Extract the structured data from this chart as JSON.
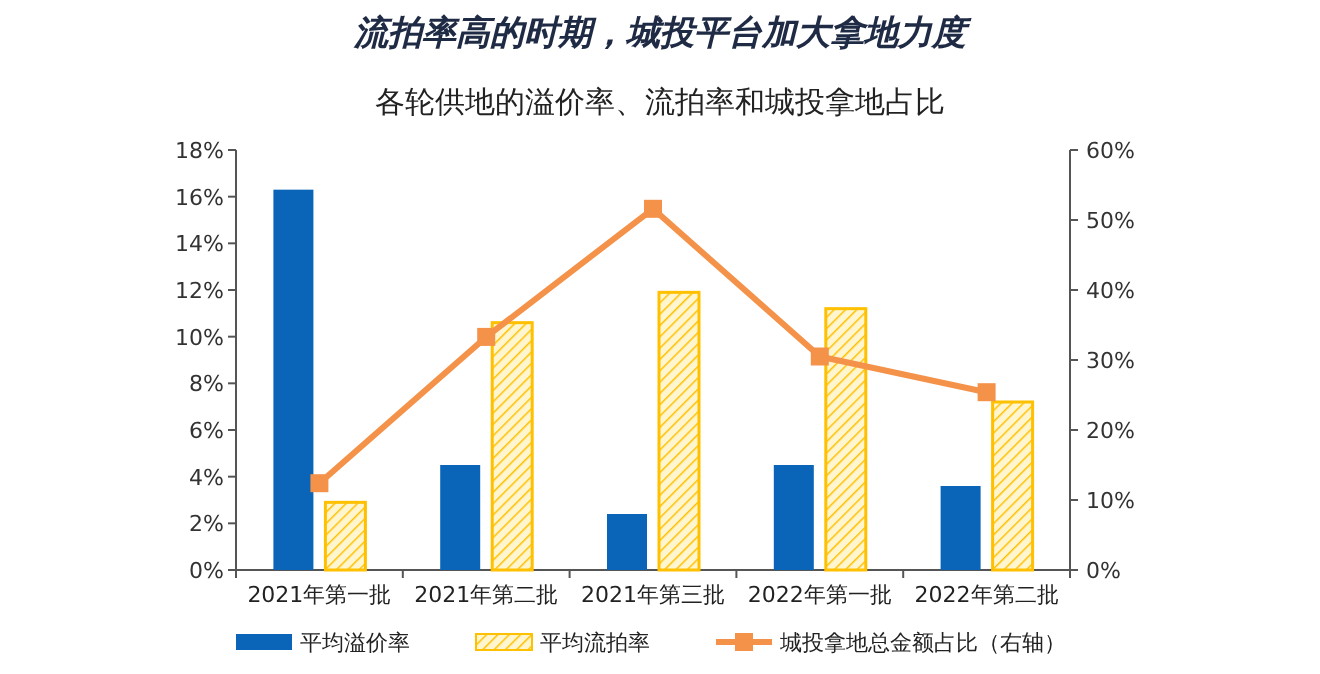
{
  "chart_data": {
    "type": "bar",
    "title": "流拍率高的时期，城投平台加大拿地力度",
    "subtitle": "各轮供地的溢价率、流拍率和城投拿地占比",
    "categories": [
      "2021年第一批",
      "2021年第二批",
      "2021年第三批",
      "2022年第一批",
      "2022年第二批"
    ],
    "series": [
      {
        "name": "平均溢价率",
        "color": "#0a64b8",
        "values": [
          16.3,
          4.5,
          2.4,
          4.5,
          3.6
        ]
      },
      {
        "name": "平均流拍率",
        "color": "#ffc000",
        "values": [
          2.9,
          10.6,
          11.9,
          11.2,
          7.2
        ]
      },
      {
        "name": "城投拿地总金额占比（右轴）",
        "type": "line",
        "axis": "y2",
        "marker": "square",
        "color": "#f4924a",
        "values": [
          12.4,
          33.3,
          51.6,
          30.5,
          25.4
        ]
      }
    ],
    "ylim": [
      0,
      18
    ],
    "yticks": [
      {
        "value": 0,
        "label": "0%"
      },
      {
        "value": 2,
        "label": "2%"
      },
      {
        "value": 4,
        "label": "4%"
      },
      {
        "value": 6,
        "label": "6%"
      },
      {
        "value": 8,
        "label": "8%"
      },
      {
        "value": 10,
        "label": "10%"
      },
      {
        "value": 12,
        "label": "12%"
      },
      {
        "value": 14,
        "label": "14%"
      },
      {
        "value": 16,
        "label": "16%"
      },
      {
        "value": 18,
        "label": "18%"
      }
    ],
    "y2lim": [
      0,
      60
    ],
    "y2ticks": [
      {
        "value": 0,
        "label": "0%"
      },
      {
        "value": 10,
        "label": "10%"
      },
      {
        "value": 20,
        "label": "20%"
      },
      {
        "value": 30,
        "label": "30%"
      },
      {
        "value": 40,
        "label": "40%"
      },
      {
        "value": 50,
        "label": "50%"
      },
      {
        "value": 60,
        "label": "60%"
      }
    ],
    "legend": "bottom"
  }
}
